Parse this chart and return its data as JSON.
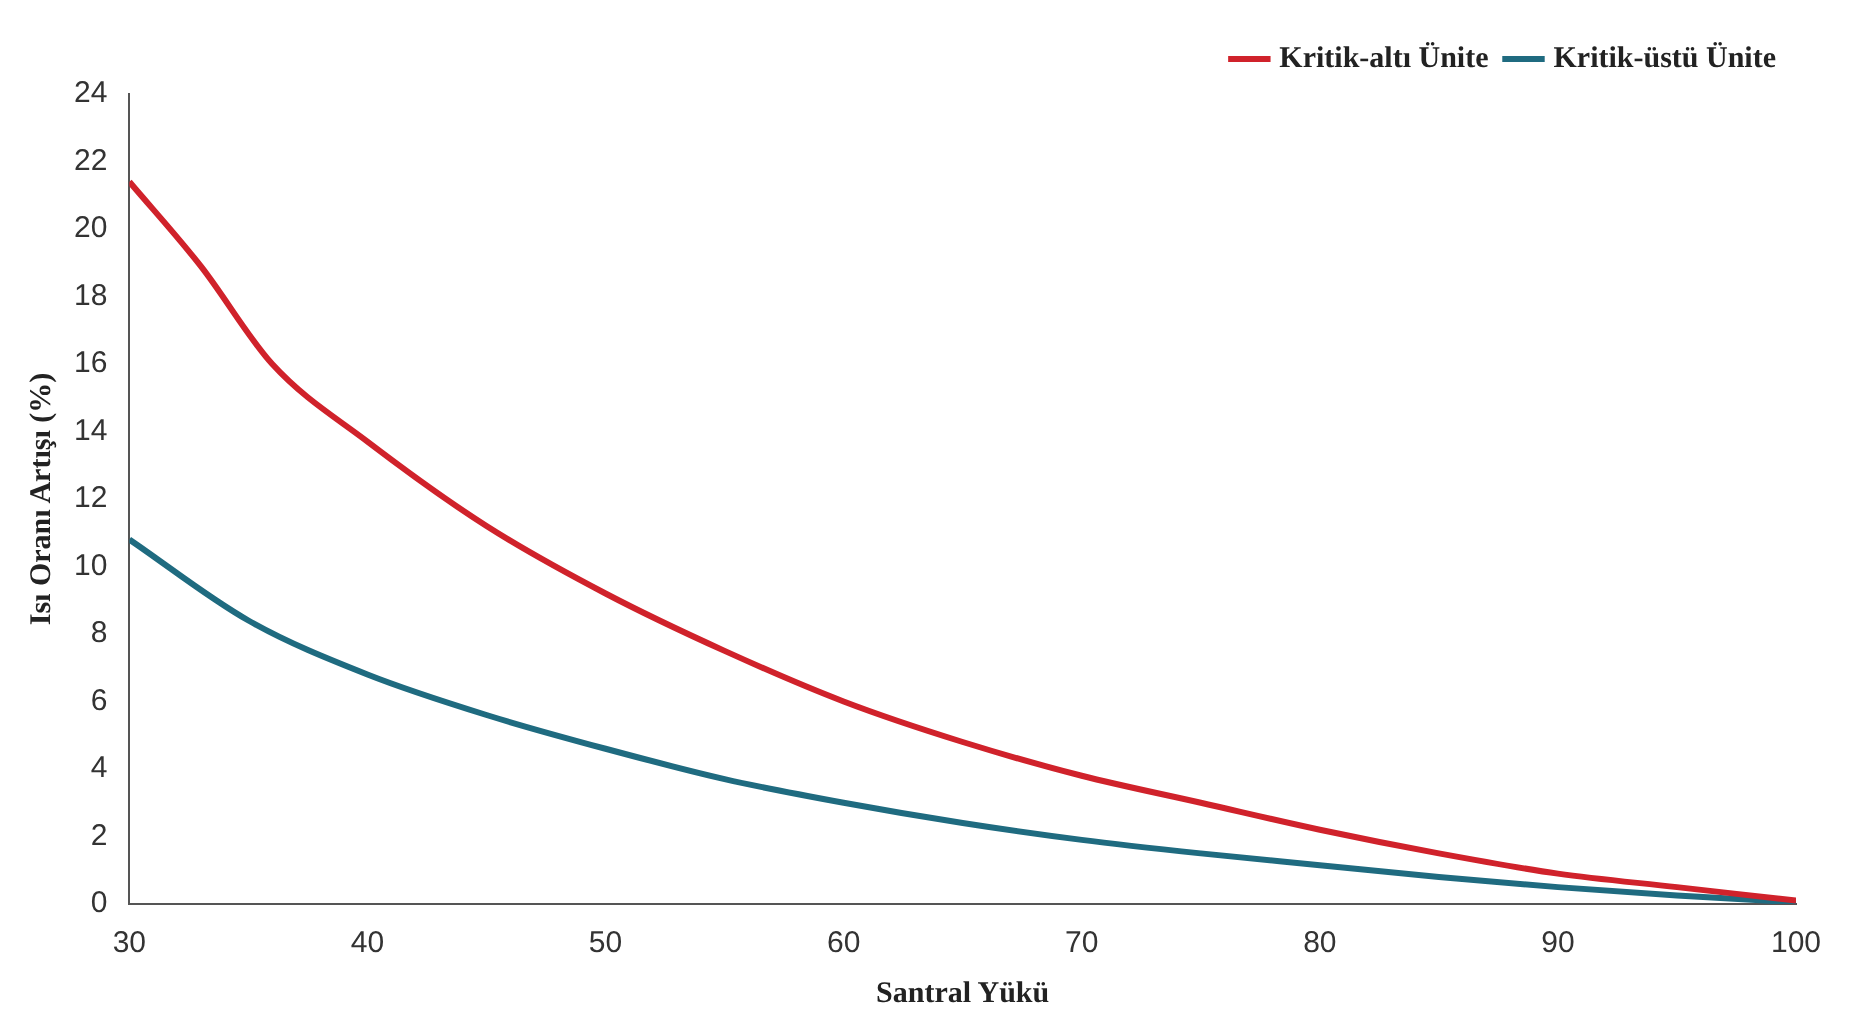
{
  "chart_data": {
    "type": "line",
    "xlabel": "Santral Yükü",
    "ylabel": "Isı Oranı Artışı (%)",
    "xlim": [
      30,
      100
    ],
    "xticks": [
      30,
      40,
      50,
      60,
      70,
      80,
      90,
      100
    ],
    "ylim": [
      0,
      24
    ],
    "yticks": [
      0,
      2,
      4,
      6,
      8,
      10,
      12,
      14,
      16,
      18,
      20,
      22,
      24
    ],
    "grid": false,
    "legend": "top right",
    "marker": "none",
    "line_style": "solid",
    "series": [
      {
        "name": "Kritik-altı Ünite",
        "color": "#d0222b",
        "x": [
          30,
          33,
          36,
          40,
          45,
          50,
          55,
          60,
          65,
          70,
          75,
          80,
          85,
          90,
          95,
          100
        ],
        "values": [
          21.4,
          18.9,
          16.0,
          13.7,
          11.2,
          9.2,
          7.5,
          6.0,
          4.8,
          3.8,
          3.0,
          2.2,
          1.5,
          0.9,
          0.5,
          0.1
        ]
      },
      {
        "name": "Kritik-üstü Ünite",
        "color": "#1f6b80",
        "x": [
          30,
          35,
          40,
          45,
          50,
          55,
          60,
          65,
          70,
          75,
          80,
          85,
          90,
          95,
          100
        ],
        "values": [
          10.8,
          8.4,
          6.8,
          5.6,
          4.6,
          3.7,
          3.0,
          2.4,
          1.9,
          1.5,
          1.15,
          0.8,
          0.5,
          0.25,
          0.05
        ]
      }
    ]
  }
}
